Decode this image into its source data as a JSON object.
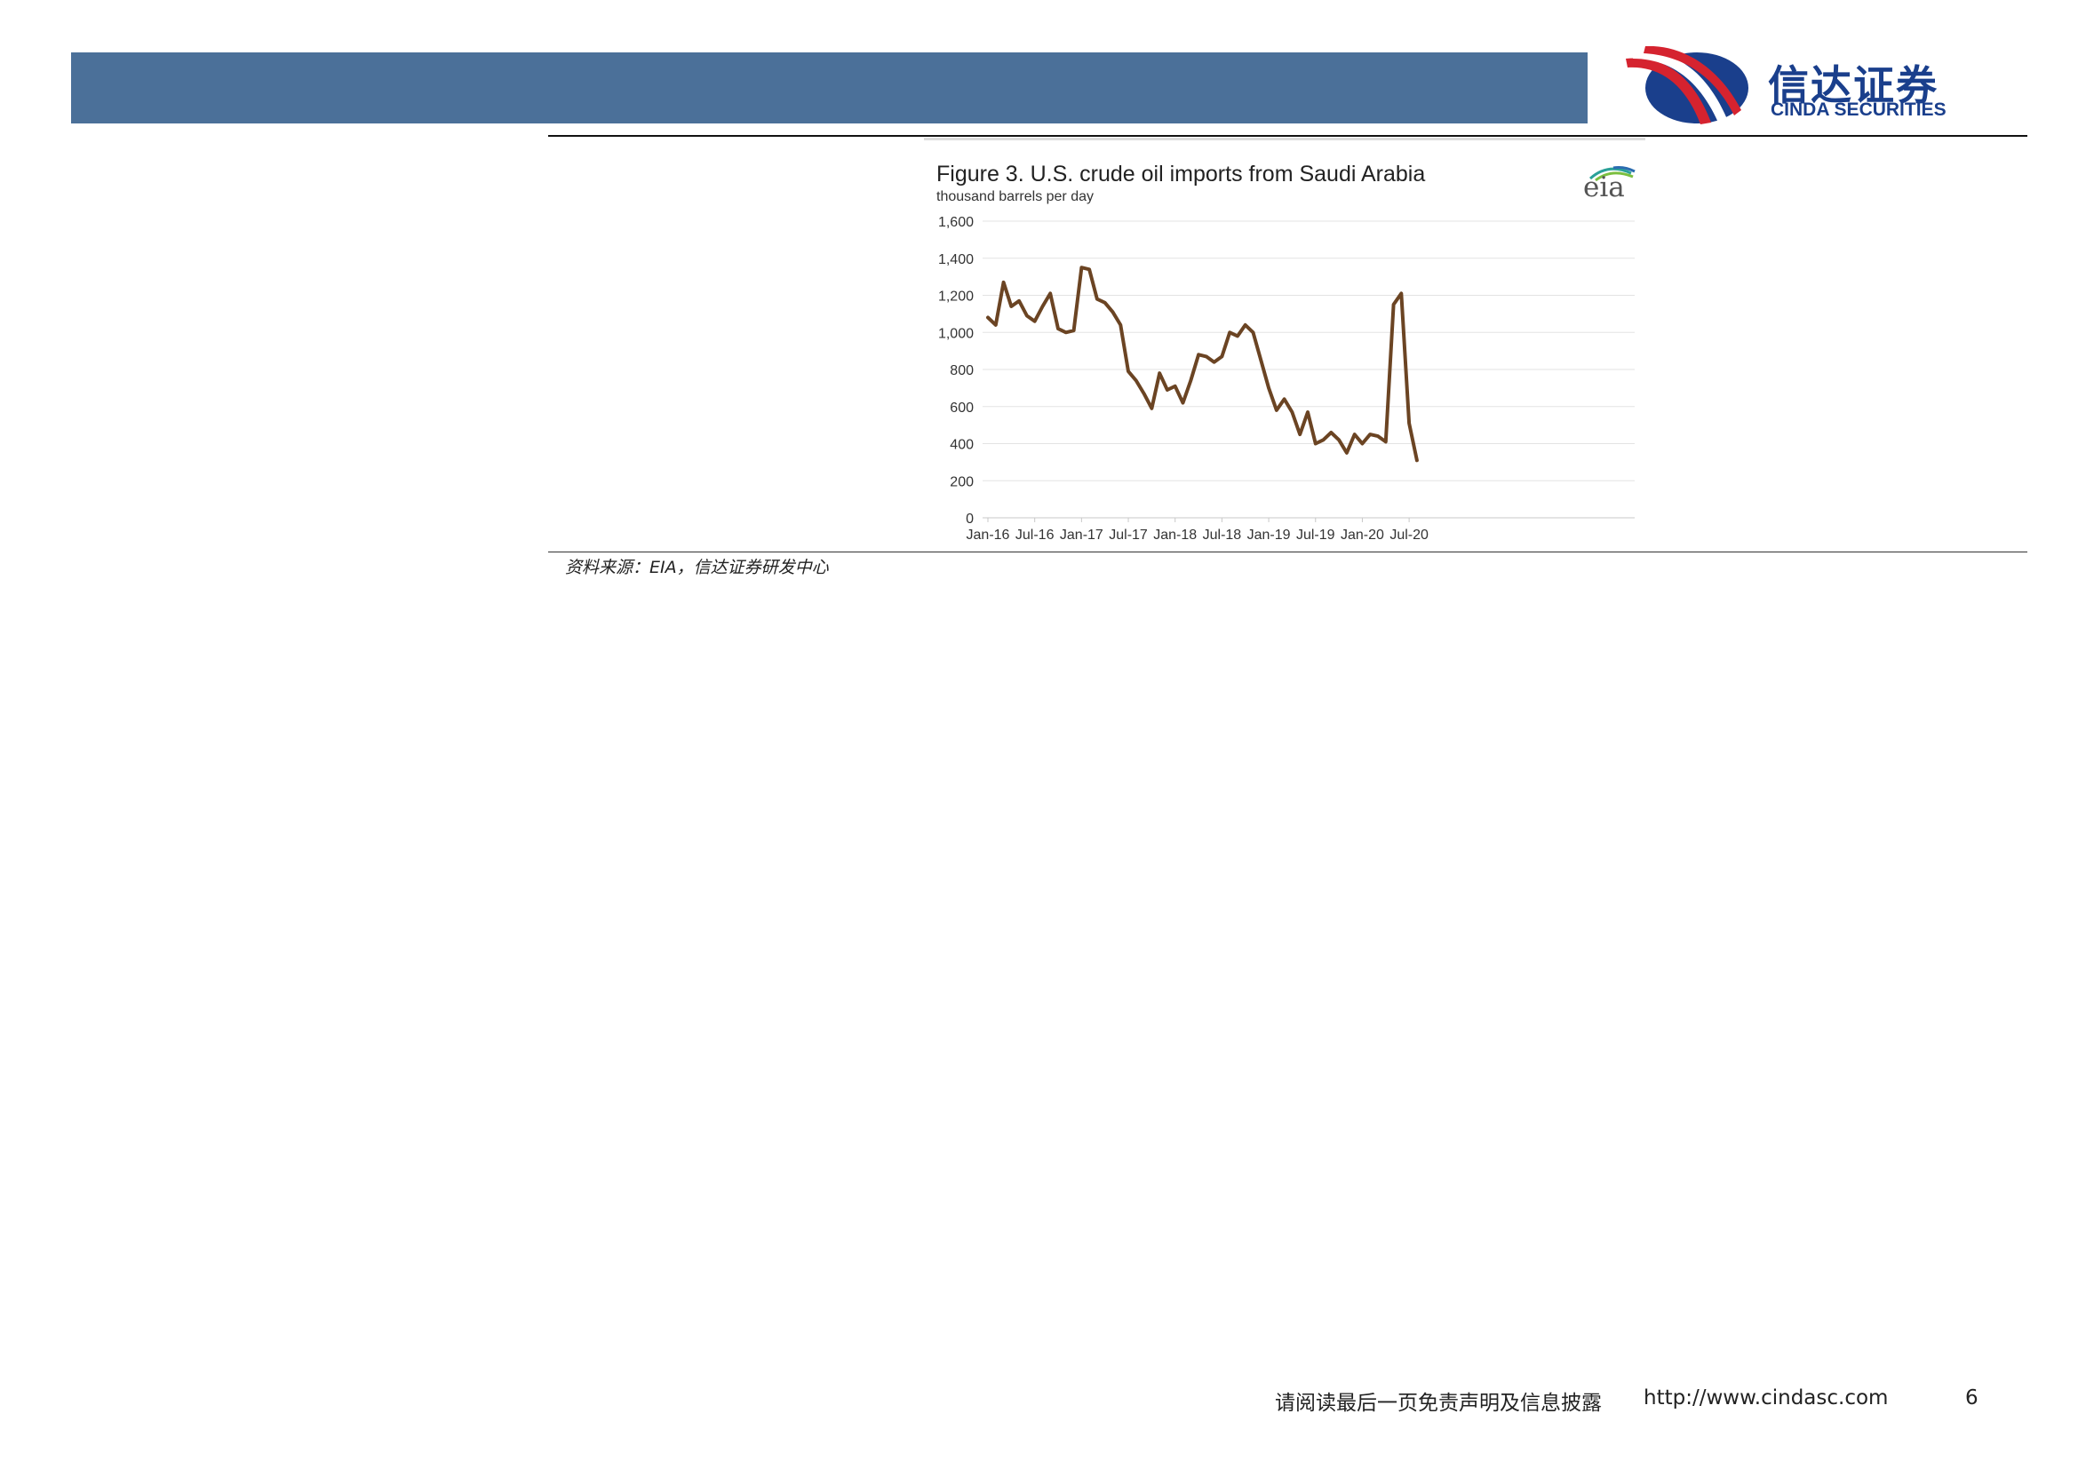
{
  "header": {
    "logo_cn": "信达证券",
    "logo_en": "CINDA SECURITIES",
    "logo_colors": {
      "red": "#d5232f",
      "navy": "#1a3f8c"
    },
    "bar_color": "#4b7099"
  },
  "chart_data": {
    "type": "line",
    "title": "Figure 3. U.S. crude oil imports from Saudi Arabia",
    "subtitle": "thousand barrels per day",
    "brand_logo": "eia",
    "xlabel": "",
    "ylabel": "",
    "x_ticks": [
      "Jan-16",
      "Jul-16",
      "Jan-17",
      "Jul-17",
      "Jan-18",
      "Jul-18",
      "Jan-19",
      "Jul-19",
      "Jan-20",
      "Jul-20"
    ],
    "y_ticks": [
      "0",
      "200",
      "400",
      "600",
      "800",
      "1,000",
      "1,200",
      "1,400",
      "1,600"
    ],
    "ylim": [
      0,
      1600
    ],
    "grid": true,
    "line_color": "#6b4423",
    "series": [
      {
        "x": [
          "2016-01",
          "2016-02",
          "2016-03",
          "2016-04",
          "2016-05",
          "2016-06",
          "2016-07",
          "2016-08",
          "2016-09",
          "2016-10",
          "2016-11",
          "2016-12",
          "2017-01",
          "2017-02",
          "2017-03",
          "2017-04",
          "2017-05",
          "2017-06",
          "2017-07",
          "2017-08",
          "2017-09",
          "2017-10",
          "2017-11",
          "2017-12",
          "2018-01",
          "2018-02",
          "2018-03",
          "2018-04",
          "2018-05",
          "2018-06",
          "2018-07",
          "2018-08",
          "2018-09",
          "2018-10",
          "2018-11",
          "2018-12",
          "2019-01",
          "2019-02",
          "2019-03",
          "2019-04",
          "2019-05",
          "2019-06",
          "2019-07",
          "2019-08",
          "2019-09",
          "2019-10",
          "2019-11",
          "2019-12",
          "2020-01",
          "2020-02",
          "2020-03",
          "2020-04",
          "2020-05",
          "2020-06",
          "2020-07",
          "2020-08"
        ],
        "values": [
          1080,
          1040,
          1270,
          1140,
          1170,
          1090,
          1060,
          1140,
          1210,
          1020,
          1000,
          1010,
          1350,
          1340,
          1180,
          1160,
          1110,
          1040,
          790,
          740,
          670,
          590,
          780,
          690,
          710,
          620,
          740,
          880,
          870,
          840,
          870,
          1000,
          980,
          1040,
          1000,
          850,
          700,
          580,
          640,
          570,
          450,
          570,
          400,
          420,
          460,
          420,
          350,
          450,
          400,
          450,
          440,
          410,
          1150,
          1210,
          510,
          310
        ]
      }
    ]
  },
  "source_note": "资料来源：EIA，信达证券研发中心",
  "footer": {
    "disclaimer": "请阅读最后一页免责声明及信息披露",
    "url": "http://www.cindasc.com",
    "page": "6"
  }
}
